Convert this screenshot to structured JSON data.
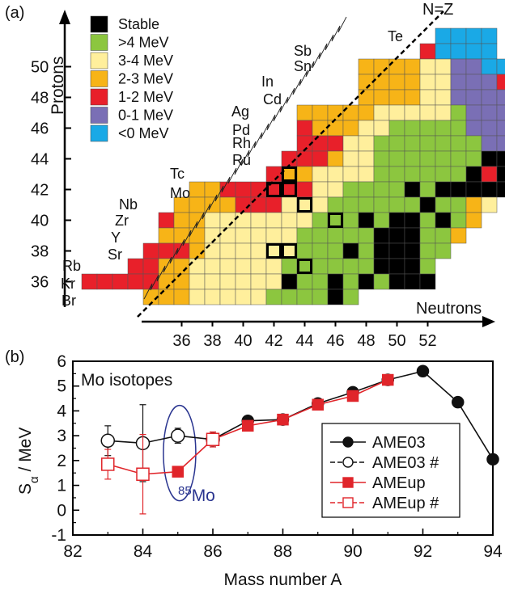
{
  "chart_data": [
    {
      "type": "heatmap",
      "panel_label": "(a)",
      "xlabel": "Neutrons",
      "ylabel": "Protons",
      "line_label": "N=Z",
      "x_ticks": [
        36,
        38,
        40,
        42,
        44,
        46,
        48,
        50,
        52
      ],
      "y_ticks": [
        36,
        38,
        40,
        42,
        44,
        46,
        48,
        50
      ],
      "legend": [
        {
          "label": "Stable",
          "color": "#000000"
        },
        {
          "label": ">4 MeV",
          "color": "#8cc63f"
        },
        {
          "label": "3-4 MeV",
          "color": "#ffef9c"
        },
        {
          "label": "2-3 MeV",
          "color": "#f7b417"
        },
        {
          "label": "1-2 MeV",
          "color": "#e8202a"
        },
        {
          "label": "0-1 MeV",
          "color": "#7a6fb5"
        },
        {
          "label": "<0 MeV",
          "color": "#1aa9e6"
        }
      ],
      "element_labels": [
        {
          "z": 35,
          "text": "Br"
        },
        {
          "z": 36,
          "text": "Kr"
        },
        {
          "z": 37,
          "text": "Rb"
        },
        {
          "z": 38,
          "text": "Sr"
        },
        {
          "z": 39,
          "text": "Y"
        },
        {
          "z": 40,
          "text": "Zr"
        },
        {
          "z": 41,
          "text": "Nb"
        },
        {
          "z": 42,
          "text": "Mo"
        },
        {
          "z": 43,
          "text": "Tc"
        },
        {
          "z": 44,
          "text": "Ru"
        },
        {
          "z": 45,
          "text": "Rh"
        },
        {
          "z": 46,
          "text": "Pd"
        },
        {
          "z": 47,
          "text": "Ag"
        },
        {
          "z": 48,
          "text": "Cd"
        },
        {
          "z": 49,
          "text": "In"
        },
        {
          "z": 50,
          "text": "Sn"
        },
        {
          "z": 51,
          "text": "Sb"
        },
        {
          "z": 52,
          "text": "Te"
        }
      ],
      "rows": [
        {
          "z": 52,
          "n_start": 53,
          "cells": "BBBB"
        },
        {
          "z": 51,
          "n_start": 52,
          "cells": "RBBBB"
        },
        {
          "z": 50,
          "n_start": 48,
          "cells": "OOOOYYUUBB"
        },
        {
          "z": 49,
          "n_start": 48,
          "cells": "OOOOYYUUUR"
        },
        {
          "z": 48,
          "n_start": 48,
          "cells": "OOOOYYUUUUR"
        },
        {
          "z": 47,
          "n_start": 44,
          "cells": "OOOOOYYYYYGUUUUR"
        },
        {
          "z": 46,
          "n_start": 44,
          "cells": "ROOOYYGGGGGUUURRRK"
        },
        {
          "z": 45,
          "n_start": 44,
          "cells": "RRRYYGGGGGGGUURROO"
        },
        {
          "z": 44,
          "n_start": 43,
          "cells": "RRROYYGGGGGGGKKRKK"
        },
        {
          "z": 43,
          "n_start": 42,
          "cells": "ROOYYYYGGGGGGKRKRO"
        },
        {
          "z": 42,
          "n_start": 37,
          "cells": "OORRRRRRYYGGGGKGKKKKK"
        },
        {
          "z": 41,
          "n_start": 36,
          "cells": "OOOORRRYYYGGGGGGKGGOY"
        },
        {
          "z": 40,
          "n_start": 35,
          "cells": "ROOYYYYYYYGGGKGKKGKGO"
        },
        {
          "z": 39,
          "n_start": 35,
          "cells": "OOOYYYYYYGGGGGKKKGGO"
        },
        {
          "z": 38,
          "n_start": 34,
          "cells": "RRROYYYYYYGGGKGKKKGG"
        },
        {
          "z": 37,
          "n_start": 33,
          "cells": "RROOYYYYYYGGGGGGKKKG"
        },
        {
          "z": 36,
          "n_start": 30,
          "cells": "RRRRROOYYYYYYKGGKGKGKKK"
        },
        {
          "z": 35,
          "n_start": 34,
          "cells": "OOOYYYYYGGGGKG"
        }
      ],
      "highlighted_cells": [
        {
          "n": 42,
          "z": 42
        },
        {
          "n": 43,
          "z": 42
        },
        {
          "n": 43,
          "z": 43
        },
        {
          "n": 44,
          "z": 41
        },
        {
          "n": 46,
          "z": 40
        },
        {
          "n": 42,
          "z": 38
        },
        {
          "n": 43,
          "z": 38
        },
        {
          "n": 44,
          "z": 37
        }
      ]
    },
    {
      "type": "scatter",
      "panel_label": "(b)",
      "title": "Mo isotopes",
      "xlabel": "Mass number A",
      "ylabel_main": "S",
      "ylabel_sub": "α",
      "ylabel_rest": " / MeV",
      "xlim": [
        82,
        94
      ],
      "ylim": [
        -1,
        6
      ],
      "x_ticks": [
        "82",
        "84",
        "86",
        "88",
        "90",
        "92",
        "94"
      ],
      "y_ticks": [
        "-1",
        "0",
        "1",
        "2",
        "3",
        "4",
        "5",
        "6"
      ],
      "annotation_sup": "85",
      "annotation_text": "Mo",
      "series": [
        {
          "name": "AME03",
          "color": "#111111",
          "filled": true,
          "points": [
            {
              "x": 83,
              "y": 2.8,
              "open": true,
              "err": 0.6
            },
            {
              "x": 84,
              "y": 2.7,
              "open": true,
              "err": 1.55
            },
            {
              "x": 85,
              "y": 3.0,
              "open": true,
              "err": 0.3
            },
            {
              "x": 86,
              "y": 2.85,
              "open": true,
              "err": 0.3
            },
            {
              "x": 87,
              "y": 3.6,
              "open": false
            },
            {
              "x": 88,
              "y": 3.65,
              "open": false
            },
            {
              "x": 89,
              "y": 4.3,
              "open": false
            },
            {
              "x": 90,
              "y": 4.75,
              "open": false
            },
            {
              "x": 91,
              "y": 5.25,
              "open": false
            },
            {
              "x": 92,
              "y": 5.6,
              "open": false
            },
            {
              "x": 93,
              "y": 4.35,
              "open": false
            },
            {
              "x": 94,
              "y": 2.05,
              "open": false
            }
          ]
        },
        {
          "name": "AMEup",
          "color": "#e0252a",
          "filled": true,
          "points": [
            {
              "x": 83,
              "y": 1.85,
              "open": true,
              "err": 0.6
            },
            {
              "x": 84,
              "y": 1.45,
              "open": true,
              "err": 1.6
            },
            {
              "x": 85,
              "y": 1.55,
              "open": false
            },
            {
              "x": 86,
              "y": 2.85,
              "open": true,
              "err": 0.3
            },
            {
              "x": 87,
              "y": 3.4,
              "open": false
            },
            {
              "x": 88,
              "y": 3.65,
              "open": false
            },
            {
              "x": 89,
              "y": 4.25,
              "open": false
            },
            {
              "x": 90,
              "y": 4.6,
              "open": false
            },
            {
              "x": 91,
              "y": 5.25,
              "open": false
            }
          ]
        }
      ],
      "legend": [
        {
          "label": "AME03",
          "series": 0,
          "open": false
        },
        {
          "label": "AME03 #",
          "series": 0,
          "open": true
        },
        {
          "label": "AMEup",
          "series": 1,
          "open": false
        },
        {
          "label": "AMEup #",
          "series": 1,
          "open": true
        }
      ],
      "ellipse_color": "#2a3590"
    }
  ]
}
